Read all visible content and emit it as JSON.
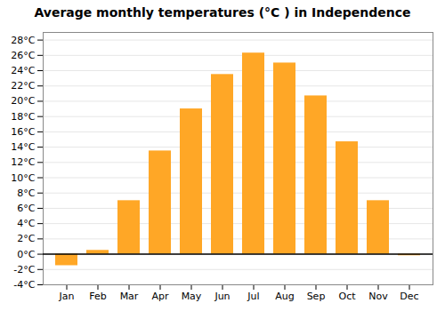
{
  "chart_data": {
    "type": "bar",
    "title": "Average monthly temperatures (°C ) in Independence",
    "categories": [
      "Jan",
      "Feb",
      "Mar",
      "Apr",
      "May",
      "Jun",
      "Jul",
      "Aug",
      "Sep",
      "Oct",
      "Nov",
      "Dec"
    ],
    "values": [
      -1.5,
      0.5,
      7.0,
      13.5,
      19.0,
      23.5,
      26.3,
      25.0,
      20.7,
      14.7,
      7.0,
      -0.2
    ],
    "color": "#FFA726",
    "ylim": [
      -4,
      29
    ],
    "yticks": [
      {
        "value": -4,
        "label": "-4°C"
      },
      {
        "value": -2,
        "label": "-2°C"
      },
      {
        "value": 0,
        "label": "0°C"
      },
      {
        "value": 2,
        "label": "2°C"
      },
      {
        "value": 4,
        "label": "4°C"
      },
      {
        "value": 6,
        "label": "6°C"
      },
      {
        "value": 8,
        "label": "8°C"
      },
      {
        "value": 10,
        "label": "10°C"
      },
      {
        "value": 12,
        "label": "12°C"
      },
      {
        "value": 14,
        "label": "14°C"
      },
      {
        "value": 16,
        "label": "16°C"
      },
      {
        "value": 18,
        "label": "18°C"
      },
      {
        "value": 20,
        "label": "20°C"
      },
      {
        "value": 22,
        "label": "22°C"
      },
      {
        "value": 24,
        "label": "24°C"
      },
      {
        "value": 26,
        "label": "26°C"
      },
      {
        "value": 28,
        "label": "28°C"
      }
    ],
    "grid": true
  }
}
